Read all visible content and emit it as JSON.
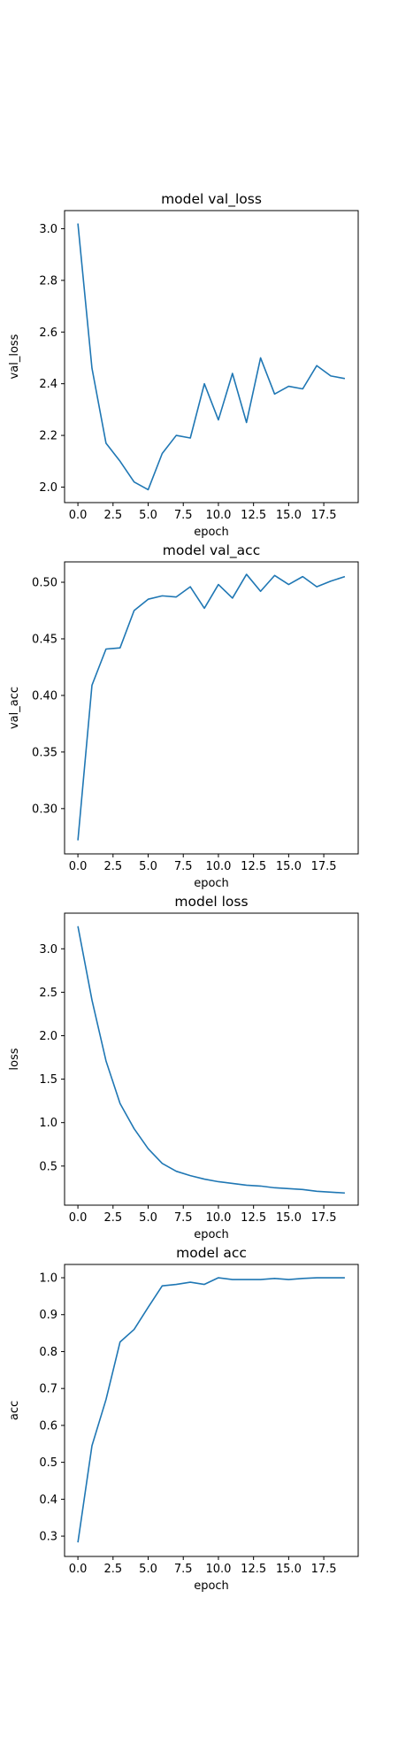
{
  "colors": {
    "series": "#1f77b4",
    "axes": "#000000",
    "background": "#ffffff"
  },
  "chart_data": [
    {
      "type": "line",
      "title": "model val_loss",
      "xlabel": "epoch",
      "ylabel": "val_loss",
      "xlim": [
        -0.95,
        19.95
      ],
      "ylim": [
        1.94,
        3.07
      ],
      "xticks": [
        0.0,
        2.5,
        5.0,
        7.5,
        10.0,
        12.5,
        15.0,
        17.5
      ],
      "xtick_labels": [
        "0.0",
        "2.5",
        "5.0",
        "7.5",
        "10.0",
        "12.5",
        "15.0",
        "17.5"
      ],
      "yticks": [
        2.0,
        2.2,
        2.4,
        2.6,
        2.8,
        3.0
      ],
      "ytick_labels": [
        "2.0",
        "2.2",
        "2.4",
        "2.6",
        "2.8",
        "3.0"
      ],
      "x": [
        0,
        1,
        2,
        3,
        4,
        5,
        6,
        7,
        8,
        9,
        10,
        11,
        12,
        13,
        14,
        15,
        16,
        17,
        18,
        19
      ],
      "series": [
        {
          "values": [
            3.02,
            2.46,
            2.17,
            2.1,
            2.02,
            1.99,
            2.13,
            2.2,
            2.19,
            2.4,
            2.26,
            2.44,
            2.25,
            2.5,
            2.36,
            2.39,
            2.38,
            2.47,
            2.43,
            2.42
          ]
        }
      ]
    },
    {
      "type": "line",
      "title": "model val_acc",
      "xlabel": "epoch",
      "ylabel": "val_acc",
      "xlim": [
        -0.95,
        19.95
      ],
      "ylim": [
        0.26,
        0.518
      ],
      "xticks": [
        0.0,
        2.5,
        5.0,
        7.5,
        10.0,
        12.5,
        15.0,
        17.5
      ],
      "xtick_labels": [
        "0.0",
        "2.5",
        "5.0",
        "7.5",
        "10.0",
        "12.5",
        "15.0",
        "17.5"
      ],
      "yticks": [
        0.3,
        0.35,
        0.4,
        0.45,
        0.5
      ],
      "ytick_labels": [
        "0.30",
        "0.35",
        "0.40",
        "0.45",
        "0.50"
      ],
      "x": [
        0,
        1,
        2,
        3,
        4,
        5,
        6,
        7,
        8,
        9,
        10,
        11,
        12,
        13,
        14,
        15,
        16,
        17,
        18,
        19
      ],
      "series": [
        {
          "values": [
            0.272,
            0.409,
            0.441,
            0.442,
            0.475,
            0.485,
            0.488,
            0.487,
            0.496,
            0.477,
            0.498,
            0.486,
            0.507,
            0.492,
            0.506,
            0.498,
            0.505,
            0.496,
            0.501,
            0.505
          ]
        }
      ]
    },
    {
      "type": "line",
      "title": "model loss",
      "xlabel": "epoch",
      "ylabel": "loss",
      "xlim": [
        -0.95,
        19.95
      ],
      "ylim": [
        0.05,
        3.41
      ],
      "xticks": [
        0.0,
        2.5,
        5.0,
        7.5,
        10.0,
        12.5,
        15.0,
        17.5
      ],
      "xtick_labels": [
        "0.0",
        "2.5",
        "5.0",
        "7.5",
        "10.0",
        "12.5",
        "15.0",
        "17.5"
      ],
      "yticks": [
        0.5,
        1.0,
        1.5,
        2.0,
        2.5,
        3.0
      ],
      "ytick_labels": [
        "0.5",
        "1.0",
        "1.5",
        "2.0",
        "2.5",
        "3.0"
      ],
      "x": [
        0,
        1,
        2,
        3,
        4,
        5,
        6,
        7,
        8,
        9,
        10,
        11,
        12,
        13,
        14,
        15,
        16,
        17,
        18,
        19
      ],
      "series": [
        {
          "values": [
            3.26,
            2.41,
            1.71,
            1.22,
            0.93,
            0.7,
            0.53,
            0.44,
            0.39,
            0.35,
            0.32,
            0.3,
            0.28,
            0.27,
            0.25,
            0.24,
            0.23,
            0.21,
            0.2,
            0.19
          ]
        }
      ]
    },
    {
      "type": "line",
      "title": "model acc",
      "xlabel": "epoch",
      "ylabel": "acc",
      "xlim": [
        -0.95,
        19.95
      ],
      "ylim": [
        0.245,
        1.036
      ],
      "xticks": [
        0.0,
        2.5,
        5.0,
        7.5,
        10.0,
        12.5,
        15.0,
        17.5
      ],
      "xtick_labels": [
        "0.0",
        "2.5",
        "5.0",
        "7.5",
        "10.0",
        "12.5",
        "15.0",
        "17.5"
      ],
      "yticks": [
        0.3,
        0.4,
        0.5,
        0.6,
        0.7,
        0.8,
        0.9,
        1.0
      ],
      "ytick_labels": [
        "0.3",
        "0.4",
        "0.5",
        "0.6",
        "0.7",
        "0.8",
        "0.9",
        "1.0"
      ],
      "x": [
        0,
        1,
        2,
        3,
        4,
        5,
        6,
        7,
        8,
        9,
        10,
        11,
        12,
        13,
        14,
        15,
        16,
        17,
        18,
        19
      ],
      "series": [
        {
          "values": [
            0.283,
            0.545,
            0.67,
            0.826,
            0.86,
            0.92,
            0.978,
            0.982,
            0.988,
            0.982,
            1.0,
            0.995,
            0.995,
            0.995,
            0.998,
            0.995,
            0.998,
            1.0,
            1.0,
            1.0
          ]
        }
      ]
    }
  ]
}
